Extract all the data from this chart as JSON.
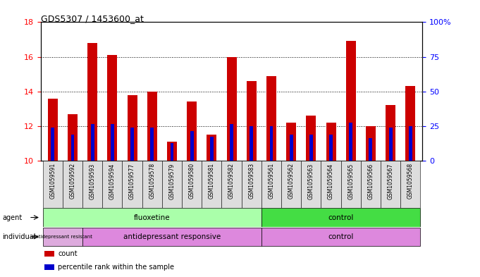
{
  "title": "GDS5307 / 1453600_at",
  "samples": [
    "GSM1059591",
    "GSM1059592",
    "GSM1059593",
    "GSM1059594",
    "GSM1059577",
    "GSM1059578",
    "GSM1059579",
    "GSM1059580",
    "GSM1059581",
    "GSM1059582",
    "GSM1059583",
    "GSM1059561",
    "GSM1059562",
    "GSM1059563",
    "GSM1059564",
    "GSM1059565",
    "GSM1059566",
    "GSM1059567",
    "GSM1059568"
  ],
  "count_values": [
    13.6,
    12.7,
    16.8,
    16.1,
    13.8,
    14.0,
    11.1,
    13.4,
    11.5,
    16.0,
    14.6,
    14.9,
    12.2,
    12.6,
    12.2,
    16.9,
    12.0,
    13.2,
    14.3
  ],
  "percentile_values": [
    11.9,
    11.5,
    12.1,
    12.1,
    11.9,
    11.9,
    11.0,
    11.7,
    11.4,
    12.1,
    12.0,
    12.0,
    11.5,
    11.5,
    11.5,
    12.2,
    11.3,
    11.9,
    12.0
  ],
  "ylim_left": [
    10,
    18
  ],
  "ylim_right": [
    0,
    100
  ],
  "yticks_left": [
    10,
    12,
    14,
    16,
    18
  ],
  "yticks_right": [
    0,
    25,
    50,
    75,
    100
  ],
  "ytick_labels_right": [
    "0",
    "25",
    "50",
    "75",
    "100%"
  ],
  "bar_color": "#cc0000",
  "percentile_color": "#0000cc",
  "bar_width": 0.5,
  "agent_groups": [
    {
      "label": "fluoxetine",
      "start": 0,
      "end": 10,
      "color": "#aaffaa"
    },
    {
      "label": "control",
      "start": 11,
      "end": 18,
      "color": "#44dd44"
    }
  ],
  "individual_groups": [
    {
      "label": "antidepressant resistant",
      "start": 0,
      "end": 1,
      "color": "#ddaadd"
    },
    {
      "label": "antidepressant responsive",
      "start": 2,
      "end": 10,
      "color": "#dd88dd"
    },
    {
      "label": "control",
      "start": 11,
      "end": 18,
      "color": "#dd88dd"
    }
  ],
  "legend_items": [
    {
      "color": "#cc0000",
      "label": "count"
    },
    {
      "color": "#0000cc",
      "label": "percentile rank within the sample"
    }
  ]
}
